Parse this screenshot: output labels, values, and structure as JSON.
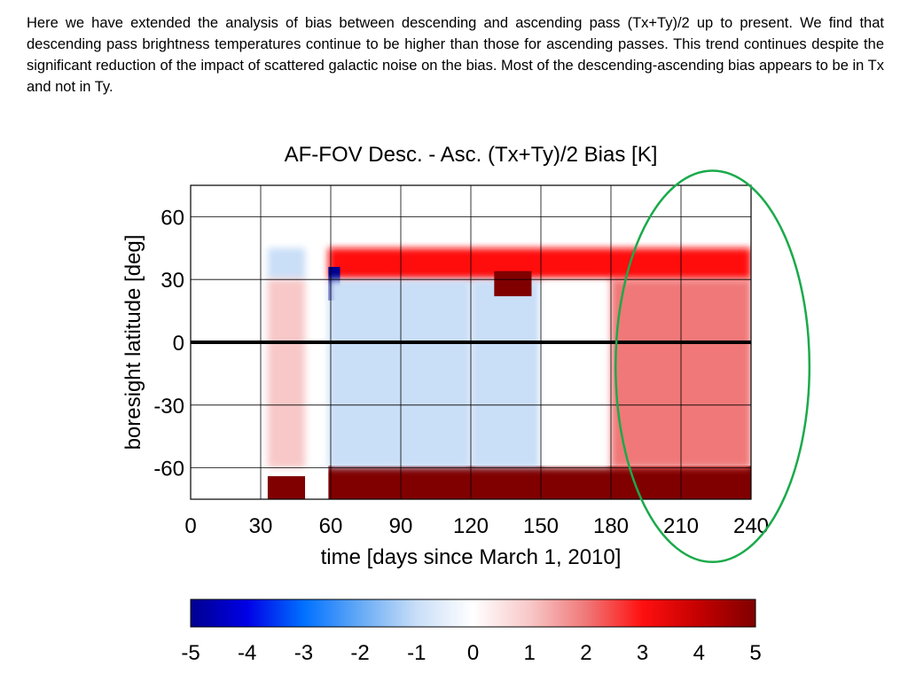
{
  "intro_text": "Here we have extended the analysis of bias between descending and ascending pass (Tx+Ty)/2 up to present. We find that descending pass brightness temperatures continue to be higher than those for ascending passes. This trend continues despite the significant reduction of the impact of scattered galactic noise on the bias. Most of the descending-ascending bias appears to be in Tx and not in Ty.",
  "colors": {
    "scale": [
      "#00008f",
      "#0000e6",
      "#0070ff",
      "#66aaf5",
      "#c9def7",
      "#ffffff",
      "#f8c8c8",
      "#f07878",
      "#ff1010",
      "#c40000",
      "#800000"
    ],
    "annotation": "#1aaa4a",
    "zero_line": "#000000",
    "grid": "#000000"
  },
  "chart_data": {
    "type": "heatmap",
    "title": "AF-FOV Desc. - Asc. (Tx+Ty)/2 Bias [K]",
    "xlabel": "time [days since March 1, 2010]",
    "ylabel": "boresight latitude [deg]",
    "xlim": [
      0,
      240
    ],
    "ylim": [
      -75,
      75
    ],
    "xticks": [
      0,
      30,
      60,
      90,
      120,
      150,
      180,
      210,
      240
    ],
    "yticks": [
      -60,
      -30,
      0,
      30,
      60
    ],
    "colorbar": {
      "range": [
        -5,
        5
      ],
      "ticks": [
        -5,
        -4,
        -3,
        -2,
        -1,
        0,
        1,
        2,
        3,
        4,
        5
      ]
    },
    "data_gaps_days": [
      [
        0,
        33
      ],
      [
        49,
        59
      ]
    ],
    "regions": [
      {
        "x": [
          33,
          49
        ],
        "y": [
          -75,
          -64
        ],
        "value": 5
      },
      {
        "x": [
          59,
          240
        ],
        "y": [
          -75,
          -59
        ],
        "value": 5
      },
      {
        "x": [
          59,
          240
        ],
        "y": [
          30,
          45
        ],
        "value": 3
      },
      {
        "x": [
          33,
          49
        ],
        "y": [
          30,
          45
        ],
        "value": -1.5
      },
      {
        "x": [
          59,
          64
        ],
        "y": [
          20,
          36
        ],
        "value": -5
      },
      {
        "x": [
          33,
          49
        ],
        "y": [
          -60,
          30
        ],
        "value": 0.5
      },
      {
        "x": [
          59,
          120
        ],
        "y": [
          -60,
          30
        ],
        "value": -0.8
      },
      {
        "x": [
          120,
          150
        ],
        "y": [
          -60,
          30
        ],
        "value": -0.6
      },
      {
        "x": [
          150,
          180
        ],
        "y": [
          -60,
          30
        ],
        "value": 0.3
      },
      {
        "x": [
          180,
          240
        ],
        "y": [
          -60,
          30
        ],
        "value": 1.8
      },
      {
        "x": [
          130,
          146
        ],
        "y": [
          22,
          34
        ],
        "value": 4.5
      }
    ],
    "zero_line": {
      "y": 0
    },
    "annotation": {
      "shape": "ellipse",
      "x_range": [
        182,
        265
      ],
      "y_range": [
        -105,
        82
      ]
    }
  }
}
